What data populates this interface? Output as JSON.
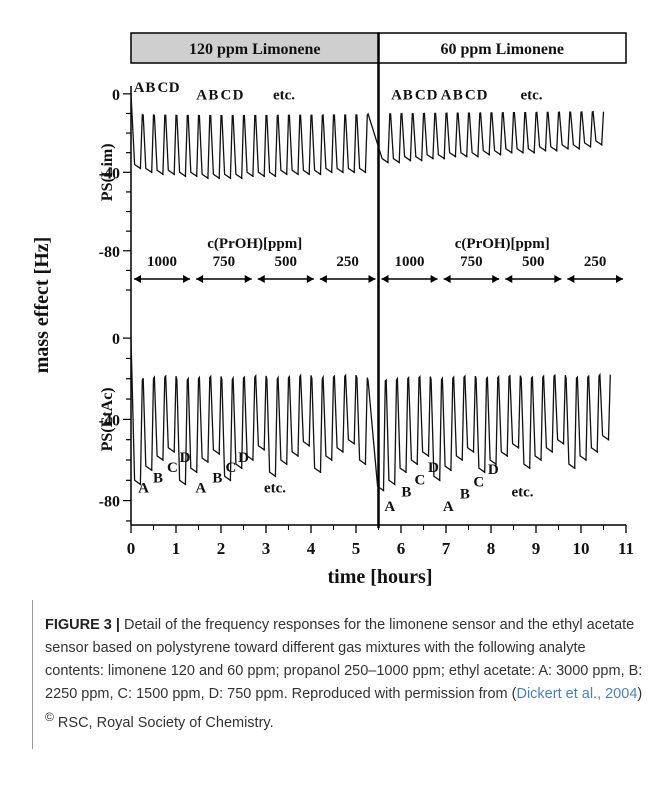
{
  "chart_data": {
    "type": "line",
    "header": {
      "left": "120 ppm Limonene",
      "right": "60 ppm Limonene"
    },
    "xlabel": "time [hours]",
    "ylabel": "mass effect [Hz]",
    "xlim": [
      0,
      11
    ],
    "x_ticks": [
      "0",
      "1",
      "2",
      "3",
      "4",
      "5",
      "6",
      "7",
      "8",
      "9",
      "10",
      "11"
    ],
    "divider_x": 5.5,
    "concentration_label": "c(PrOH)[ppm]",
    "concentration_segments": [
      {
        "label": "1000",
        "from": 0.0,
        "to": 1.38
      },
      {
        "label": "750",
        "from": 1.38,
        "to": 2.75
      },
      {
        "label": "500",
        "from": 2.75,
        "to": 4.13
      },
      {
        "label": "250",
        "from": 4.13,
        "to": 5.5
      },
      {
        "label": "1000",
        "from": 5.5,
        "to": 6.88
      },
      {
        "label": "750",
        "from": 6.88,
        "to": 8.25
      },
      {
        "label": "500",
        "from": 8.25,
        "to": 9.63
      },
      {
        "label": "250",
        "from": 9.63,
        "to": 11.0
      }
    ],
    "panels": [
      {
        "name": "PS(Lim)",
        "ylim": [
          -100,
          4
        ],
        "y_ticks": [
          {
            "value": 0,
            "label": "0"
          },
          {
            "value": -40,
            "label": "-40"
          },
          {
            "value": -80,
            "label": "-80"
          }
        ],
        "series": [
          {
            "peaks": [
              {
                "x": 0.25,
                "y": -38
              },
              {
                "x": 0.5,
                "y": -40
              },
              {
                "x": 0.75,
                "y": -41
              },
              {
                "x": 1.0,
                "y": -41
              },
              {
                "x": 1.25,
                "y": -42
              },
              {
                "x": 1.5,
                "y": -42
              },
              {
                "x": 1.75,
                "y": -43
              },
              {
                "x": 2.0,
                "y": -43
              },
              {
                "x": 2.25,
                "y": -43
              },
              {
                "x": 2.5,
                "y": -43
              },
              {
                "x": 2.75,
                "y": -42
              },
              {
                "x": 3.0,
                "y": -42
              },
              {
                "x": 3.25,
                "y": -42
              },
              {
                "x": 3.5,
                "y": -41
              },
              {
                "x": 3.75,
                "y": -41
              },
              {
                "x": 4.0,
                "y": -41
              },
              {
                "x": 4.25,
                "y": -41
              },
              {
                "x": 4.5,
                "y": -40
              },
              {
                "x": 4.75,
                "y": -40
              },
              {
                "x": 5.0,
                "y": -40
              },
              {
                "x": 5.25,
                "y": -40
              },
              {
                "x": 5.75,
                "y": -35
              },
              {
                "x": 6.0,
                "y": -35
              },
              {
                "x": 6.25,
                "y": -34
              },
              {
                "x": 6.5,
                "y": -34
              },
              {
                "x": 6.75,
                "y": -33
              },
              {
                "x": 7.0,
                "y": -33
              },
              {
                "x": 7.25,
                "y": -32
              },
              {
                "x": 7.5,
                "y": -32
              },
              {
                "x": 7.75,
                "y": -32
              },
              {
                "x": 8.0,
                "y": -31
              },
              {
                "x": 8.25,
                "y": -31
              },
              {
                "x": 8.5,
                "y": -30
              },
              {
                "x": 8.75,
                "y": -30
              },
              {
                "x": 9.0,
                "y": -30
              },
              {
                "x": 9.25,
                "y": -29
              },
              {
                "x": 9.5,
                "y": -29
              },
              {
                "x": 9.75,
                "y": -28
              },
              {
                "x": 10.0,
                "y": -28
              },
              {
                "x": 10.25,
                "y": -27
              },
              {
                "x": 10.5,
                "y": -26
              }
            ]
          }
        ],
        "annotations": [
          {
            "text": "A",
            "x": 0.18,
            "y": 1
          },
          {
            "text": "B",
            "x": 0.43,
            "y": 1
          },
          {
            "text": "C",
            "x": 0.71,
            "y": 1
          },
          {
            "text": "D",
            "x": 0.96,
            "y": 1
          },
          {
            "text": "A",
            "x": 1.57,
            "y": -3
          },
          {
            "text": "B",
            "x": 1.83,
            "y": -3
          },
          {
            "text": "C",
            "x": 2.11,
            "y": -3
          },
          {
            "text": "D",
            "x": 2.38,
            "y": -3
          },
          {
            "text": "etc.",
            "x": 3.4,
            "y": -3
          },
          {
            "text": "A",
            "x": 5.9,
            "y": -3
          },
          {
            "text": "B",
            "x": 6.15,
            "y": -3
          },
          {
            "text": "C",
            "x": 6.43,
            "y": -3
          },
          {
            "text": "D",
            "x": 6.69,
            "y": -3
          },
          {
            "text": "A",
            "x": 7.0,
            "y": -3
          },
          {
            "text": "B",
            "x": 7.26,
            "y": -3
          },
          {
            "text": "C",
            "x": 7.54,
            "y": -3
          },
          {
            "text": "D",
            "x": 7.8,
            "y": -3
          },
          {
            "text": "etc.",
            "x": 8.9,
            "y": -3
          }
        ]
      },
      {
        "name": "PS(EtAc)",
        "ylim": [
          -92,
          4
        ],
        "y_ticks": [
          {
            "value": 0,
            "label": "0"
          },
          {
            "value": -40,
            "label": "-40"
          },
          {
            "value": -80,
            "label": "-80"
          }
        ],
        "series": [
          {
            "peaks": [
              {
                "x": 0.25,
                "y": -72
              },
              {
                "x": 0.5,
                "y": -65
              },
              {
                "x": 0.75,
                "y": -60
              },
              {
                "x": 1.0,
                "y": -56
              },
              {
                "x": 1.25,
                "y": -72
              },
              {
                "x": 1.5,
                "y": -66
              },
              {
                "x": 1.75,
                "y": -61
              },
              {
                "x": 2.0,
                "y": -57
              },
              {
                "x": 2.25,
                "y": -70
              },
              {
                "x": 2.5,
                "y": -64
              },
              {
                "x": 2.75,
                "y": -60
              },
              {
                "x": 3.0,
                "y": -55
              },
              {
                "x": 3.25,
                "y": -68
              },
              {
                "x": 3.5,
                "y": -62
              },
              {
                "x": 3.75,
                "y": -58
              },
              {
                "x": 4.0,
                "y": -53
              },
              {
                "x": 4.25,
                "y": -66
              },
              {
                "x": 4.5,
                "y": -60
              },
              {
                "x": 4.75,
                "y": -56
              },
              {
                "x": 5.0,
                "y": -52
              },
              {
                "x": 5.25,
                "y": -62
              },
              {
                "x": 5.65,
                "y": -75
              },
              {
                "x": 5.9,
                "y": -72
              },
              {
                "x": 6.15,
                "y": -66
              },
              {
                "x": 6.4,
                "y": -62
              },
              {
                "x": 6.65,
                "y": -58
              },
              {
                "x": 6.9,
                "y": -70
              },
              {
                "x": 7.15,
                "y": -65
              },
              {
                "x": 7.4,
                "y": -60
              },
              {
                "x": 7.65,
                "y": -56
              },
              {
                "x": 7.9,
                "y": -66
              },
              {
                "x": 8.15,
                "y": -62
              },
              {
                "x": 8.4,
                "y": -58
              },
              {
                "x": 8.65,
                "y": -54
              },
              {
                "x": 8.9,
                "y": -64
              },
              {
                "x": 9.15,
                "y": -60
              },
              {
                "x": 9.4,
                "y": -56
              },
              {
                "x": 9.65,
                "y": -52
              },
              {
                "x": 9.9,
                "y": -64
              },
              {
                "x": 10.15,
                "y": -60
              },
              {
                "x": 10.4,
                "y": -56
              },
              {
                "x": 10.65,
                "y": -50
              }
            ]
          }
        ],
        "annotations": [
          {
            "text": "A",
            "x": 0.28,
            "y": -76
          },
          {
            "text": "B",
            "x": 0.6,
            "y": -71
          },
          {
            "text": "C",
            "x": 0.92,
            "y": -66
          },
          {
            "text": "D",
            "x": 1.2,
            "y": -61
          },
          {
            "text": "A",
            "x": 1.55,
            "y": -76
          },
          {
            "text": "B",
            "x": 1.92,
            "y": -71
          },
          {
            "text": "C",
            "x": 2.22,
            "y": -66
          },
          {
            "text": "D",
            "x": 2.5,
            "y": -61
          },
          {
            "text": "etc.",
            "x": 3.2,
            "y": -76
          },
          {
            "text": "A",
            "x": 5.75,
            "y": -85
          },
          {
            "text": "B",
            "x": 6.12,
            "y": -78
          },
          {
            "text": "C",
            "x": 6.42,
            "y": -72
          },
          {
            "text": "D",
            "x": 6.72,
            "y": -66
          },
          {
            "text": "A",
            "x": 7.05,
            "y": -85
          },
          {
            "text": "B",
            "x": 7.42,
            "y": -79
          },
          {
            "text": "C",
            "x": 7.73,
            "y": -73
          },
          {
            "text": "D",
            "x": 8.05,
            "y": -67
          },
          {
            "text": "etc.",
            "x": 8.7,
            "y": -78
          }
        ]
      }
    ],
    "grid": false
  },
  "caption": {
    "label": "FIGURE 3 |",
    "text": " Detail of the frequency responses for the limonene sensor and the ethyl acetate sensor based on polystyrene toward different gas mixtures with the following analyte contents: limonene 120 and 60 ppm; propanol 250–1000 ppm; ethyl acetate: A: 3000 ppm, B: 2250 ppm, C: 1500 ppm, D: 750 ppm. Reproduced with permission from (",
    "citation": "Dickert et al., 2004",
    "text_after_citation": ") ",
    "copyright": "©",
    "text_end": " RSC, Royal Society of Chemistry."
  }
}
